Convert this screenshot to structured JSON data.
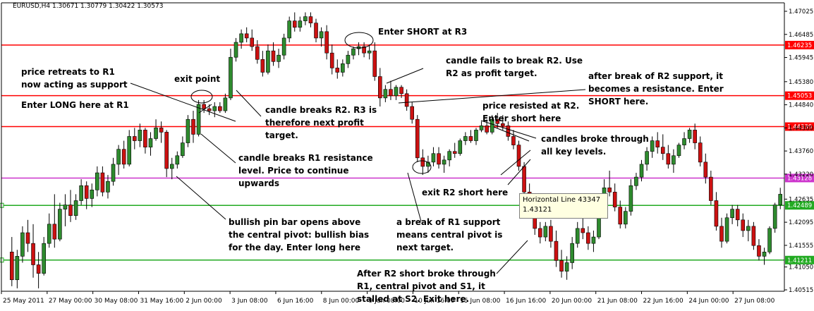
{
  "chart_data": {
    "type": "candlestick",
    "header": {
      "title_line": "EURUSD,H4  1.30671 1.30779 1.30422 1.30573",
      "symbol": "EURUSD,H4",
      "open": 1.30671,
      "high": 1.30779,
      "low": 1.30422,
      "close": 1.30573
    },
    "ylim": [
      1.4025,
      1.4725
    ],
    "y_ticks": [
      1.47025,
      1.46485,
      1.45945,
      1.4538,
      1.4484,
      1.443,
      1.4376,
      1.4322,
      1.42635,
      1.42095,
      1.41555,
      1.4105,
      1.40515
    ],
    "y_tick_labels": [
      "1.47025",
      "1.46485",
      "1.45945",
      "1.45380",
      "1.44840",
      "1.44300",
      "1.43760",
      "1.43220",
      "1.42635",
      "1.42095",
      "1.41555",
      "1.41050",
      "1.40515"
    ],
    "x_tick_labels": [
      "25 May 2011",
      "27 May 00:00",
      "30 May 08:00",
      "31 May 16:00",
      "2 Jun 00:00",
      "3 Jun 08:00",
      "6 Jun 16:00",
      "8 Jun 00:00",
      "9 Jun 08:00",
      "10 Jun 16:00",
      "15 Jun 08:00",
      "16 Jun 16:00",
      "20 Jun 00:00",
      "21 Jun 08:00",
      "22 Jun 16:00",
      "24 Jun 00:00",
      "27 Jun 08:00"
    ],
    "levels": [
      {
        "value": 1.46235,
        "label": "1.46235",
        "color": "#ff0000"
      },
      {
        "value": 1.45053,
        "label": "1.45053",
        "color": "#ff0000"
      },
      {
        "value": 1.4433,
        "label": "1.44330",
        "color": "#ff0000"
      },
      {
        "value": 1.43128,
        "label": "1.43128",
        "color": "#cc33cc"
      },
      {
        "value": 1.42489,
        "label": "1.42489",
        "color": "#22aa22"
      },
      {
        "value": 1.41211,
        "label": "1.41211",
        "color": "#22aa22"
      }
    ],
    "colors": {
      "bull": "#2e8b2e",
      "bear": "#cc1111",
      "wick": "#000000",
      "annotation": "#000000"
    },
    "candles": [
      [
        1.414,
        1.4175,
        1.406,
        1.4075
      ],
      [
        1.4075,
        1.4145,
        1.4055,
        1.413
      ],
      [
        1.413,
        1.42,
        1.4115,
        1.4185
      ],
      [
        1.4185,
        1.4215,
        1.414,
        1.416
      ],
      [
        1.416,
        1.4205,
        1.408,
        1.411
      ],
      [
        1.411,
        1.414,
        1.4055,
        1.409
      ],
      [
        1.409,
        1.4175,
        1.4085,
        1.416
      ],
      [
        1.416,
        1.423,
        1.415,
        1.4205
      ],
      [
        1.4205,
        1.4275,
        1.415,
        1.417
      ],
      [
        1.417,
        1.4255,
        1.4165,
        1.424
      ],
      [
        1.424,
        1.4275,
        1.42,
        1.425
      ],
      [
        1.425,
        1.4285,
        1.421,
        1.4225
      ],
      [
        1.4225,
        1.4275,
        1.4215,
        1.426
      ],
      [
        1.426,
        1.431,
        1.425,
        1.4295
      ],
      [
        1.4295,
        1.4305,
        1.424,
        1.4265
      ],
      [
        1.4265,
        1.43,
        1.4245,
        1.4285
      ],
      [
        1.4285,
        1.434,
        1.427,
        1.4325
      ],
      [
        1.4325,
        1.434,
        1.427,
        1.428
      ],
      [
        1.428,
        1.432,
        1.4265,
        1.4305
      ],
      [
        1.4305,
        1.436,
        1.4295,
        1.4345
      ],
      [
        1.4345,
        1.439,
        1.432,
        1.438
      ],
      [
        1.438,
        1.44,
        1.4335,
        1.4345
      ],
      [
        1.4345,
        1.4425,
        1.434,
        1.441
      ],
      [
        1.441,
        1.443,
        1.438,
        1.44
      ],
      [
        1.44,
        1.444,
        1.4385,
        1.4425
      ],
      [
        1.4425,
        1.443,
        1.437,
        1.4385
      ],
      [
        1.4385,
        1.442,
        1.4365,
        1.4405
      ],
      [
        1.4405,
        1.445,
        1.44,
        1.443
      ],
      [
        1.443,
        1.4445,
        1.4395,
        1.442
      ],
      [
        1.442,
        1.4425,
        1.4315,
        1.4335
      ],
      [
        1.4335,
        1.436,
        1.431,
        1.4345
      ],
      [
        1.4345,
        1.4375,
        1.4335,
        1.4365
      ],
      [
        1.4365,
        1.441,
        1.436,
        1.4395
      ],
      [
        1.4395,
        1.446,
        1.4385,
        1.445
      ],
      [
        1.445,
        1.447,
        1.4395,
        1.4415
      ],
      [
        1.4415,
        1.4495,
        1.441,
        1.4485
      ],
      [
        1.4485,
        1.4495,
        1.4465,
        1.4475
      ],
      [
        1.4475,
        1.4485,
        1.446,
        1.447
      ],
      [
        1.447,
        1.449,
        1.4455,
        1.448
      ],
      [
        1.448,
        1.449,
        1.4465,
        1.447
      ],
      [
        1.447,
        1.451,
        1.4465,
        1.45
      ],
      [
        1.45,
        1.4615,
        1.4495,
        1.4595
      ],
      [
        1.4595,
        1.464,
        1.4585,
        1.463
      ],
      [
        1.463,
        1.466,
        1.4615,
        1.465
      ],
      [
        1.465,
        1.4665,
        1.463,
        1.464
      ],
      [
        1.464,
        1.466,
        1.461,
        1.462
      ],
      [
        1.462,
        1.4635,
        1.458,
        1.459
      ],
      [
        1.459,
        1.461,
        1.455,
        1.456
      ],
      [
        1.456,
        1.4625,
        1.4555,
        1.461
      ],
      [
        1.461,
        1.463,
        1.4575,
        1.4585
      ],
      [
        1.4585,
        1.4615,
        1.457,
        1.46
      ],
      [
        1.46,
        1.465,
        1.459,
        1.464
      ],
      [
        1.464,
        1.469,
        1.463,
        1.468
      ],
      [
        1.468,
        1.47,
        1.4655,
        1.4665
      ],
      [
        1.4665,
        1.469,
        1.4655,
        1.468
      ],
      [
        1.468,
        1.47,
        1.467,
        1.469
      ],
      [
        1.469,
        1.47,
        1.4665,
        1.4675
      ],
      [
        1.4675,
        1.4685,
        1.463,
        1.464
      ],
      [
        1.464,
        1.4665,
        1.462,
        1.4655
      ],
      [
        1.4655,
        1.467,
        1.459,
        1.4605
      ],
      [
        1.4605,
        1.4625,
        1.4555,
        1.457
      ],
      [
        1.457,
        1.459,
        1.4545,
        1.456
      ],
      [
        1.456,
        1.459,
        1.455,
        1.458
      ],
      [
        1.458,
        1.461,
        1.457,
        1.46
      ],
      [
        1.46,
        1.462,
        1.459,
        1.4615
      ],
      [
        1.4615,
        1.463,
        1.46,
        1.462
      ],
      [
        1.462,
        1.463,
        1.4595,
        1.4605
      ],
      [
        1.4605,
        1.4625,
        1.459,
        1.461
      ],
      [
        1.461,
        1.463,
        1.454,
        1.455
      ],
      [
        1.455,
        1.457,
        1.448,
        1.45
      ],
      [
        1.45,
        1.453,
        1.449,
        1.452
      ],
      [
        1.452,
        1.454,
        1.4495,
        1.4505
      ],
      [
        1.4505,
        1.453,
        1.4495,
        1.4525
      ],
      [
        1.4525,
        1.453,
        1.45,
        1.451
      ],
      [
        1.451,
        1.452,
        1.447,
        1.448
      ],
      [
        1.448,
        1.449,
        1.444,
        1.445
      ],
      [
        1.445,
        1.446,
        1.435,
        1.436
      ],
      [
        1.436,
        1.438,
        1.432,
        1.434
      ],
      [
        1.434,
        1.4365,
        1.4325,
        1.435
      ],
      [
        1.435,
        1.4385,
        1.434,
        1.437
      ],
      [
        1.437,
        1.4385,
        1.4335,
        1.4345
      ],
      [
        1.4345,
        1.4365,
        1.4325,
        1.4355
      ],
      [
        1.4355,
        1.438,
        1.434,
        1.4375
      ],
      [
        1.4375,
        1.4395,
        1.436,
        1.437
      ],
      [
        1.437,
        1.4405,
        1.4365,
        1.44
      ],
      [
        1.44,
        1.442,
        1.439,
        1.441
      ],
      [
        1.441,
        1.4425,
        1.4395,
        1.44
      ],
      [
        1.44,
        1.443,
        1.439,
        1.4425
      ],
      [
        1.4425,
        1.4445,
        1.442,
        1.4435
      ],
      [
        1.4435,
        1.445,
        1.4415,
        1.442
      ],
      [
        1.442,
        1.446,
        1.4415,
        1.445
      ],
      [
        1.445,
        1.4465,
        1.443,
        1.444
      ],
      [
        1.444,
        1.446,
        1.4425,
        1.4435
      ],
      [
        1.4435,
        1.4445,
        1.44,
        1.441
      ],
      [
        1.441,
        1.4425,
        1.438,
        1.439
      ],
      [
        1.439,
        1.44,
        1.433,
        1.434
      ],
      [
        1.434,
        1.435,
        1.426,
        1.428
      ],
      [
        1.428,
        1.43,
        1.422,
        1.424
      ],
      [
        1.424,
        1.425,
        1.418,
        1.4195
      ],
      [
        1.4195,
        1.421,
        1.416,
        1.4175
      ],
      [
        1.4175,
        1.421,
        1.4165,
        1.42
      ],
      [
        1.42,
        1.4215,
        1.415,
        1.4165
      ],
      [
        1.4165,
        1.419,
        1.4105,
        1.412
      ],
      [
        1.412,
        1.4145,
        1.408,
        1.4095
      ],
      [
        1.4095,
        1.413,
        1.4075,
        1.4115
      ],
      [
        1.4115,
        1.4175,
        1.41,
        1.416
      ],
      [
        1.416,
        1.421,
        1.415,
        1.4195
      ],
      [
        1.4195,
        1.423,
        1.417,
        1.4185
      ],
      [
        1.4185,
        1.42,
        1.4145,
        1.416
      ],
      [
        1.416,
        1.419,
        1.414,
        1.4175
      ],
      [
        1.4175,
        1.426,
        1.417,
        1.425
      ],
      [
        1.425,
        1.431,
        1.424,
        1.429
      ],
      [
        1.429,
        1.433,
        1.427,
        1.428
      ],
      [
        1.428,
        1.43,
        1.4235,
        1.4245
      ],
      [
        1.4245,
        1.426,
        1.4195,
        1.4205
      ],
      [
        1.4205,
        1.4245,
        1.4195,
        1.4235
      ],
      [
        1.4235,
        1.431,
        1.4225,
        1.4295
      ],
      [
        1.4295,
        1.4325,
        1.4285,
        1.4315
      ],
      [
        1.4315,
        1.4355,
        1.4305,
        1.4345
      ],
      [
        1.4345,
        1.4385,
        1.433,
        1.4375
      ],
      [
        1.4375,
        1.441,
        1.436,
        1.44
      ],
      [
        1.44,
        1.442,
        1.437,
        1.4385
      ],
      [
        1.4385,
        1.4415,
        1.4355,
        1.437
      ],
      [
        1.437,
        1.439,
        1.4335,
        1.4345
      ],
      [
        1.4345,
        1.438,
        1.4325,
        1.4365
      ],
      [
        1.4365,
        1.4395,
        1.436,
        1.439
      ],
      [
        1.439,
        1.442,
        1.438,
        1.4405
      ],
      [
        1.4405,
        1.443,
        1.4395,
        1.4425
      ],
      [
        1.4425,
        1.444,
        1.438,
        1.4395
      ],
      [
        1.4395,
        1.441,
        1.434,
        1.435
      ],
      [
        1.435,
        1.437,
        1.43,
        1.4315
      ],
      [
        1.4315,
        1.433,
        1.425,
        1.426
      ],
      [
        1.426,
        1.428,
        1.419,
        1.42
      ],
      [
        1.42,
        1.422,
        1.415,
        1.4165
      ],
      [
        1.4165,
        1.423,
        1.416,
        1.422
      ],
      [
        1.422,
        1.425,
        1.4205,
        1.424
      ],
      [
        1.424,
        1.425,
        1.42,
        1.4215
      ],
      [
        1.4215,
        1.423,
        1.4175,
        1.419
      ],
      [
        1.419,
        1.4215,
        1.4165,
        1.42
      ],
      [
        1.42,
        1.421,
        1.4145,
        1.4155
      ],
      [
        1.4155,
        1.417,
        1.412,
        1.413
      ],
      [
        1.413,
        1.415,
        1.411,
        1.414
      ],
      [
        1.414,
        1.42,
        1.4135,
        1.4195
      ],
      [
        1.4195,
        1.4255,
        1.4185,
        1.425
      ],
      [
        1.425,
        1.429,
        1.424,
        1.4275
      ]
    ],
    "tooltip": {
      "line1": "Horizontal Line 43347",
      "line2": "1.43121"
    },
    "annotations": [
      {
        "id": "enter-short-r3",
        "lines": [
          "Enter SHORT at R3"
        ]
      },
      {
        "id": "price-retreats",
        "lines": [
          "price retreats to R1",
          "now acting as support"
        ]
      },
      {
        "id": "exit-point",
        "lines": [
          "exit point"
        ]
      },
      {
        "id": "enter-long-r1",
        "lines": [
          "Enter LONG here at R1"
        ]
      },
      {
        "id": "candle-breaks-r2",
        "lines": [
          "candle breaks R2. R3 is",
          "therefore next profit",
          "target."
        ]
      },
      {
        "id": "candle-fails-r2",
        "lines": [
          "candle fails to break R2. Use",
          "R2 as profit target."
        ]
      },
      {
        "id": "after-break-r2",
        "lines": [
          "after break of R2 support, it",
          "becomes a resistance. Enter",
          "SHORT here."
        ]
      },
      {
        "id": "price-resisted-r2",
        "lines": [
          "price resisted at R2.",
          "Enter short here"
        ]
      },
      {
        "id": "candles-broke",
        "lines": [
          "candles broke through",
          "all key levels."
        ]
      },
      {
        "id": "candle-breaks-r1",
        "lines": [
          "candle breaks R1 resistance",
          "level. Price to continue",
          "upwards"
        ]
      },
      {
        "id": "exit-r2-short",
        "lines": [
          "exit R2 short here"
        ]
      },
      {
        "id": "bullish-pin-bar",
        "lines": [
          "bullish pin bar opens above",
          "the central pivot: bullish bias",
          "for the day. Enter long here"
        ]
      },
      {
        "id": "break-r1-support",
        "lines": [
          "a break of R1 support",
          "means central pivot is",
          "next target."
        ]
      },
      {
        "id": "after-r2-short",
        "lines": [
          "After R2 short broke through",
          "R1, central pivot and S1, it",
          "stalled at S2. Exit here."
        ]
      }
    ]
  }
}
